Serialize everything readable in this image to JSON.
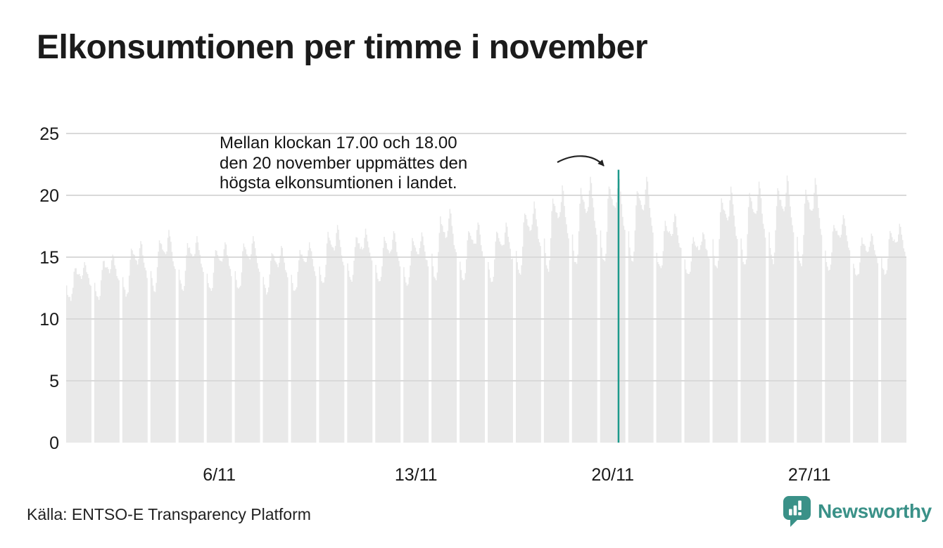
{
  "title": "Elkonsumtionen per timme i november",
  "annotation": {
    "lines": [
      "Mellan klockan 17.00 och 18.00",
      "den 20 november uppmättes den",
      "högsta elkonsumtionen i landet."
    ]
  },
  "source": "Källa: ENTSO-E Transparency Platform",
  "brand": {
    "name": "Newsworthy",
    "logo_icon": "bar-chart-speech-bubble-icon"
  },
  "colors": {
    "text": "#1b1b1b",
    "tick_text": "#191919",
    "bar_fill": "#e9e9e9",
    "gridline": "#d9d9d9",
    "highlight_line": "#1d998b",
    "brand_teal": "#3a9188",
    "arrow": "#222222"
  },
  "chart_data": {
    "type": "area",
    "title": "Elkonsumtionen per timme i november",
    "xlabel": "",
    "ylabel": "",
    "ylim": [
      0,
      25
    ],
    "y_ticks": [
      0,
      5,
      10,
      15,
      20,
      25
    ],
    "x_ticks": [
      {
        "label": "6/11",
        "day": 6
      },
      {
        "label": "13/11",
        "day": 13
      },
      {
        "label": "20/11",
        "day": 20
      },
      {
        "label": "27/11",
        "day": 27
      }
    ],
    "grid": "horizontal",
    "hours_per_day": 24,
    "highlight": {
      "day": 20,
      "date": "20/11",
      "hour_range": [
        17,
        18
      ],
      "value": 21.9,
      "note": "Högsta elkonsumtionen i landet uppmättes mellan klockan 17.00 och 18.00 den 20 november."
    },
    "days": [
      {
        "date": "1/11",
        "night_min": 11.6,
        "evening_peak": 14.6
      },
      {
        "date": "2/11",
        "night_min": 11.7,
        "evening_peak": 15.2
      },
      {
        "date": "3/11",
        "night_min": 11.9,
        "evening_peak": 16.3
      },
      {
        "date": "4/11",
        "night_min": 12.3,
        "evening_peak": 17.2
      },
      {
        "date": "5/11",
        "night_min": 12.4,
        "evening_peak": 16.7
      },
      {
        "date": "6/11",
        "night_min": 12.2,
        "evening_peak": 16.2
      },
      {
        "date": "7/11",
        "night_min": 12.4,
        "evening_peak": 16.7
      },
      {
        "date": "8/11",
        "night_min": 12.1,
        "evening_peak": 15.9
      },
      {
        "date": "9/11",
        "night_min": 12.2,
        "evening_peak": 16.2
      },
      {
        "date": "10/11",
        "night_min": 12.8,
        "evening_peak": 17.6
      },
      {
        "date": "11/11",
        "night_min": 13.0,
        "evening_peak": 17.3
      },
      {
        "date": "12/11",
        "night_min": 12.9,
        "evening_peak": 17.1
      },
      {
        "date": "13/11",
        "night_min": 12.8,
        "evening_peak": 17.0
      },
      {
        "date": "14/11",
        "night_min": 13.2,
        "evening_peak": 18.9
      },
      {
        "date": "15/11",
        "night_min": 13.1,
        "evening_peak": 17.8
      },
      {
        "date": "16/11",
        "night_min": 13.0,
        "evening_peak": 17.8
      },
      {
        "date": "17/11",
        "night_min": 13.6,
        "evening_peak": 19.5
      },
      {
        "date": "18/11",
        "night_min": 14.0,
        "evening_peak": 20.8
      },
      {
        "date": "19/11",
        "night_min": 14.3,
        "evening_peak": 21.5
      },
      {
        "date": "20/11",
        "night_min": 14.5,
        "evening_peak": 21.9
      },
      {
        "date": "21/11",
        "night_min": 14.6,
        "evening_peak": 21.5
      },
      {
        "date": "22/11",
        "night_min": 14.0,
        "evening_peak": 18.5
      },
      {
        "date": "23/11",
        "night_min": 13.6,
        "evening_peak": 17.0
      },
      {
        "date": "24/11",
        "night_min": 14.0,
        "evening_peak": 20.7
      },
      {
        "date": "25/11",
        "night_min": 14.3,
        "evening_peak": 21.1
      },
      {
        "date": "26/11",
        "night_min": 14.5,
        "evening_peak": 21.6
      },
      {
        "date": "27/11",
        "night_min": 14.4,
        "evening_peak": 21.4
      },
      {
        "date": "28/11",
        "night_min": 13.8,
        "evening_peak": 18.4
      },
      {
        "date": "29/11",
        "night_min": 13.4,
        "evening_peak": 16.9
      },
      {
        "date": "30/11",
        "night_min": 13.6,
        "evening_peak": 17.7
      }
    ],
    "hour_shape": [
      0.34,
      0.17,
      0.07,
      0.02,
      0.0,
      0.1,
      0.36,
      0.68,
      0.86,
      0.8,
      0.74,
      0.7,
      0.66,
      0.62,
      0.6,
      0.66,
      0.83,
      1.0,
      0.92,
      0.78,
      0.64,
      0.52,
      0.42,
      0.36
    ],
    "jitter_amp": 0.2
  }
}
